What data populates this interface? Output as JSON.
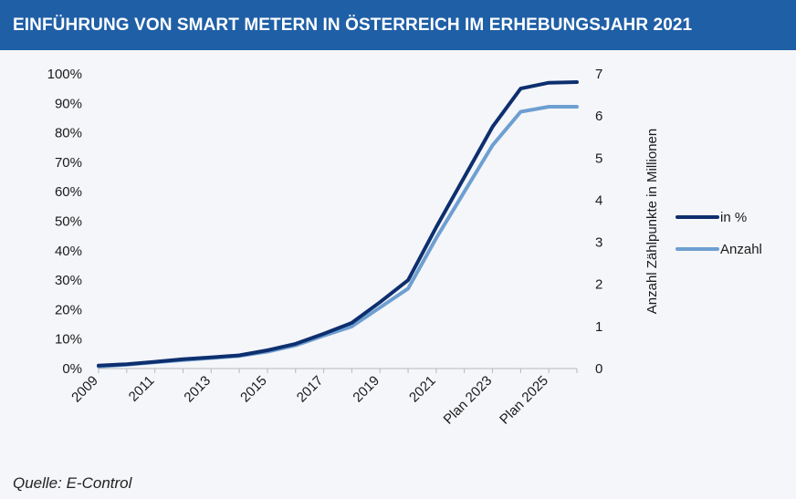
{
  "header": {
    "title": "EINFÜHRUNG VON SMART METERN IN ÖSTERREICH IM ERHEBUNGSJAHR 2021"
  },
  "footer": {
    "source": "Quelle: E-Control"
  },
  "colors": {
    "header_bg": "#1f5fa6",
    "series_pct": "#0d2f6e",
    "series_count": "#6e9fd1"
  },
  "chart_data": {
    "type": "line",
    "x": [
      "2009",
      "2010",
      "2011",
      "2012",
      "2013",
      "2014",
      "2015",
      "2016",
      "2017",
      "2018",
      "2019",
      "2020",
      "2021",
      "2022",
      "Plan 2023",
      "2024",
      "Plan 2025",
      "2026"
    ],
    "x_tick_labels": [
      "2009",
      "2011",
      "2013",
      "2015",
      "2017",
      "2019",
      "2021",
      "Plan 2023",
      "Plan 2025"
    ],
    "y_left": {
      "ticks": [
        "0%",
        "10%",
        "20%",
        "30%",
        "40%",
        "50%",
        "60%",
        "70%",
        "80%",
        "90%",
        "100%"
      ],
      "range": [
        0,
        100
      ]
    },
    "y_right": {
      "label": "Anzahl Zählpunkte in Millionen",
      "ticks": [
        "0",
        "1",
        "2",
        "3",
        "4",
        "5",
        "6",
        "7"
      ],
      "range": [
        0,
        7
      ]
    },
    "series": [
      {
        "name": "in %",
        "axis": "left",
        "values": [
          1,
          1.5,
          2.3,
          3.2,
          3.8,
          4.5,
          6.2,
          8.4,
          11.8,
          15.5,
          22.5,
          30,
          48,
          65,
          82,
          95,
          97,
          97.2
        ]
      },
      {
        "name": "Anzahl",
        "axis": "right",
        "values": [
          0.05,
          0.09,
          0.15,
          0.2,
          0.25,
          0.3,
          0.4,
          0.55,
          0.78,
          1.0,
          1.45,
          1.9,
          3.1,
          4.2,
          5.3,
          6.1,
          6.22,
          6.22
        ]
      }
    ],
    "legend": "right",
    "grid": false
  }
}
